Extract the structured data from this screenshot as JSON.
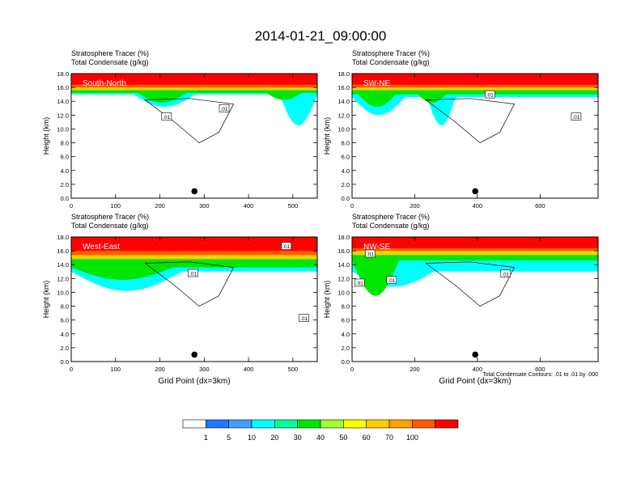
{
  "title": "2014-01-21_09:00:00",
  "colors": {
    "levels": [
      "#ffffff",
      "#1e78ff",
      "#3ca0ff",
      "#00ffff",
      "#00ff96",
      "#00e600",
      "#a0ff32",
      "#ffff00",
      "#ffcd00",
      "#ffa000",
      "#ff5a00",
      "#ff0000"
    ],
    "contour": "#000000",
    "frame": "#000000"
  },
  "chart_data": [
    {
      "type": "heatmap",
      "panel_label": "South-North",
      "title_line1": "Stratosphere Tracer   (%)",
      "title_line2": "Total Condensate   (g/kg)",
      "ylabel": "Height (km)",
      "xlabel": "",
      "xlim": [
        0,
        555
      ],
      "ylim": [
        0,
        18
      ],
      "xticks": [
        0,
        100,
        200,
        300,
        400,
        500
      ],
      "yticks": [
        "0.0",
        "2.0",
        "4.0",
        "6.0",
        "8.0",
        "10.0",
        "12.0",
        "14.0",
        "16.0",
        "18.0"
      ],
      "contour_labels": [
        {
          "text": ".01",
          "x": 215,
          "y": 11.8
        },
        {
          "text": ".01",
          "x": 345,
          "y": 13.0
        }
      ],
      "marker": {
        "x": 278,
        "y": 1.0
      },
      "layers": [
        {
          "level": 100,
          "base": 16.4
        },
        {
          "level": 70,
          "base": 16.0
        },
        {
          "level": 50,
          "base": 15.6
        },
        {
          "level": 20,
          "base": 15.2,
          "dips": [
            {
              "x0": 150,
              "x1": 260,
              "bottom": 13.8
            },
            {
              "x0": 440,
              "x1": 520,
              "bottom": 14.2
            }
          ]
        },
        {
          "level": 5,
          "base": 15.0,
          "dips": [
            {
              "x0": 140,
              "x1": 280,
              "bottom": 13.2
            },
            {
              "x0": 470,
              "x1": 555,
              "bottom": 10.5
            }
          ]
        }
      ]
    },
    {
      "type": "heatmap",
      "panel_label": "SW-NE",
      "title_line1": "Stratosphere Tracer   (%)",
      "title_line2": "Total Condensate   (g/kg)",
      "ylabel": "Height (km)",
      "xlabel": "",
      "xlim": [
        0,
        785
      ],
      "ylim": [
        0,
        18
      ],
      "xticks": [
        0,
        200,
        400,
        600
      ],
      "yticks": [
        "0.0",
        "2.0",
        "4.0",
        "6.0",
        "8.0",
        "10.0",
        "12.0",
        "14.0",
        "16.0",
        "18.0"
      ],
      "contour_labels": [
        {
          "text": ".01",
          "x": 440,
          "y": 15.0
        },
        {
          "text": ".01",
          "x": 715,
          "y": 11.8
        }
      ],
      "marker": {
        "x": 393,
        "y": 1.0
      },
      "layers": [
        {
          "level": 100,
          "base": 16.4
        },
        {
          "level": 70,
          "base": 16.0
        },
        {
          "level": 50,
          "base": 15.6
        },
        {
          "level": 20,
          "base": 15.0,
          "dips": [
            {
              "x0": 20,
              "x1": 140,
              "bottom": 13.2
            },
            {
              "x0": 210,
              "x1": 300,
              "bottom": 13.8
            }
          ]
        },
        {
          "level": 5,
          "base": 14.6,
          "dips": [
            {
              "x0": 0,
              "x1": 170,
              "bottom": 12.0
            },
            {
              "x0": 240,
              "x1": 330,
              "bottom": 10.5
            }
          ]
        }
      ]
    },
    {
      "type": "heatmap",
      "panel_label": "West-East",
      "title_line1": "Stratosphere Tracer   (%)",
      "title_line2": "Total Condensate   (g/kg)",
      "ylabel": "Height (km)",
      "xlabel": "Grid Point (dx=3km)",
      "xlim": [
        0,
        555
      ],
      "ylim": [
        0,
        18
      ],
      "xticks": [
        0,
        100,
        200,
        300,
        400,
        500
      ],
      "yticks": [
        "0.0",
        "2.0",
        "4.0",
        "6.0",
        "8.0",
        "10.0",
        "12.0",
        "14.0",
        "16.0",
        "18.0"
      ],
      "contour_labels": [
        {
          "text": ".01",
          "x": 485,
          "y": 16.7
        },
        {
          "text": ".01",
          "x": 275,
          "y": 12.8
        },
        {
          "text": ".01",
          "x": 525,
          "y": 6.3
        }
      ],
      "marker": {
        "x": 278,
        "y": 1.0
      },
      "layers": [
        {
          "level": 100,
          "base": 16.0
        },
        {
          "level": 70,
          "base": 15.4
        },
        {
          "level": 50,
          "base": 14.8
        },
        {
          "level": 20,
          "base": 13.6,
          "dips": [
            {
              "x0": 0,
              "x1": 230,
              "bottom": 11.8
            }
          ]
        },
        {
          "level": 5,
          "base": 13.0,
          "dips": [
            {
              "x0": 0,
              "x1": 250,
              "bottom": 10.2
            }
          ]
        }
      ]
    },
    {
      "type": "heatmap",
      "panel_label": "NW-SE",
      "title_line1": "Stratosphere Tracer   (%)",
      "title_line2": "Total Condensate   (g/kg)",
      "ylabel": "Height (km)",
      "xlabel": "Grid Point (dx=3km)",
      "xlim": [
        0,
        785
      ],
      "ylim": [
        0,
        18
      ],
      "xticks": [
        0,
        200,
        400,
        600
      ],
      "yticks": [
        "0.0",
        "2.0",
        "4.0",
        "6.0",
        "8.0",
        "10.0",
        "12.0",
        "14.0",
        "16.0",
        "18.0"
      ],
      "contour_labels": [
        {
          "text": ".01",
          "x": 58,
          "y": 15.6
        },
        {
          "text": ".01",
          "x": 24,
          "y": 11.4
        },
        {
          "text": ".01",
          "x": 126,
          "y": 11.8
        },
        {
          "text": ".01",
          "x": 490,
          "y": 12.7
        }
      ],
      "marker": {
        "x": 393,
        "y": 1.0
      },
      "layers": [
        {
          "level": 100,
          "base": 16.4
        },
        {
          "level": 70,
          "base": 16.0
        },
        {
          "level": 50,
          "base": 15.4
        },
        {
          "level": 20,
          "base": 14.6,
          "dips": [
            {
              "x0": 0,
              "x1": 150,
              "bottom": 9.5
            }
          ]
        },
        {
          "level": 5,
          "base": 13.0,
          "dips": [
            {
              "x0": 0,
              "x1": 260,
              "bottom": 10.8
            }
          ]
        }
      ],
      "footnote": "Total Condensate Contours: .01 to .01 by .000"
    }
  ],
  "colorbar": {
    "labels": [
      "1",
      "5",
      "10",
      "20",
      "30",
      "40",
      "50",
      "60",
      "70",
      "100"
    ],
    "levels": [
      0,
      1,
      5,
      10,
      20,
      30,
      40,
      50,
      60,
      70,
      100
    ]
  }
}
